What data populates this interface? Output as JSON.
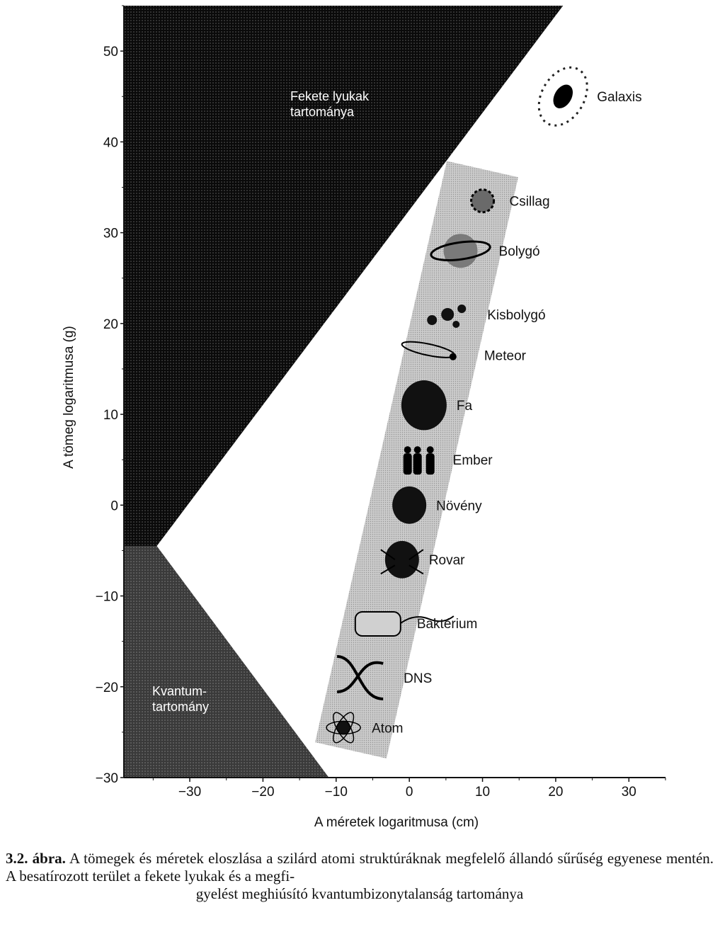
{
  "chart_data": {
    "type": "scatter",
    "xlabel": "A méretek logaritmusa (cm)",
    "ylabel": "A tömeg logaritmusa (g)",
    "xlim": [
      -39,
      35
    ],
    "ylim": [
      -30,
      55
    ],
    "xticks": [
      -30,
      -20,
      -10,
      0,
      10,
      20,
      30
    ],
    "yticks": [
      -30,
      -20,
      -10,
      0,
      10,
      20,
      30,
      40,
      50
    ],
    "xtick_labels": [
      "−30",
      "−20",
      "−10",
      "0",
      "10",
      "20",
      "30"
    ],
    "ytick_labels": [
      "−30",
      "−20",
      "−10",
      "0",
      "10",
      "20",
      "30",
      "40",
      "50"
    ],
    "grid": false,
    "regions": [
      {
        "label_lines": [
          "Fekete lyukak",
          "tartománya"
        ],
        "fill": "#0a0a0a",
        "text_color": "#ffffff",
        "polygon": [
          [
            -39,
            -4.5
          ],
          [
            -34.5,
            -4.5
          ],
          [
            21,
            55
          ],
          [
            -39,
            55
          ]
        ]
      },
      {
        "label_lines": [
          "Kvantum-",
          "tartomány"
        ],
        "fill": "#3a3a3a",
        "text_color": "#ffffff",
        "polygon": [
          [
            -39,
            -4.5
          ],
          [
            -34.5,
            -4.5
          ],
          [
            -11,
            -30
          ],
          [
            -39,
            -30
          ]
        ]
      }
    ],
    "density_band": {
      "fill": "#b9b9b9",
      "from": [
        -8,
        -27
      ],
      "to": [
        10,
        37
      ],
      "width": 10
    },
    "points": [
      {
        "label": "Galaxis",
        "x": 21,
        "y": 45
      },
      {
        "label": "Csillag",
        "x": 10,
        "y": 33.5
      },
      {
        "label": "Bolygó",
        "x": 7,
        "y": 28
      },
      {
        "label": "Kisbolygó",
        "x": 6,
        "y": 21
      },
      {
        "label": "Meteor",
        "x": 5,
        "y": 16.5
      },
      {
        "label": "Fa",
        "x": 2,
        "y": 11
      },
      {
        "label": "Ember",
        "x": 1.5,
        "y": 5
      },
      {
        "label": "Növény",
        "x": 0,
        "y": 0
      },
      {
        "label": "Rovar",
        "x": -1,
        "y": -6
      },
      {
        "label": "Baktérium",
        "x": -4,
        "y": -13
      },
      {
        "label": "DNS",
        "x": -6,
        "y": -19
      },
      {
        "label": "Atom",
        "x": -9,
        "y": -24.5
      }
    ]
  },
  "caption": {
    "number": "3.2. ábra.",
    "text": "A tömegek és méretek eloszlása a szilárd atomi struktúráknak megfelelő állandó sűrűség egyenese mentén. A besatírozott terület a fekete lyukak és a megfi-",
    "last_line": "gyelést meghiúsító kvantumbizonytalanság tartománya"
  }
}
